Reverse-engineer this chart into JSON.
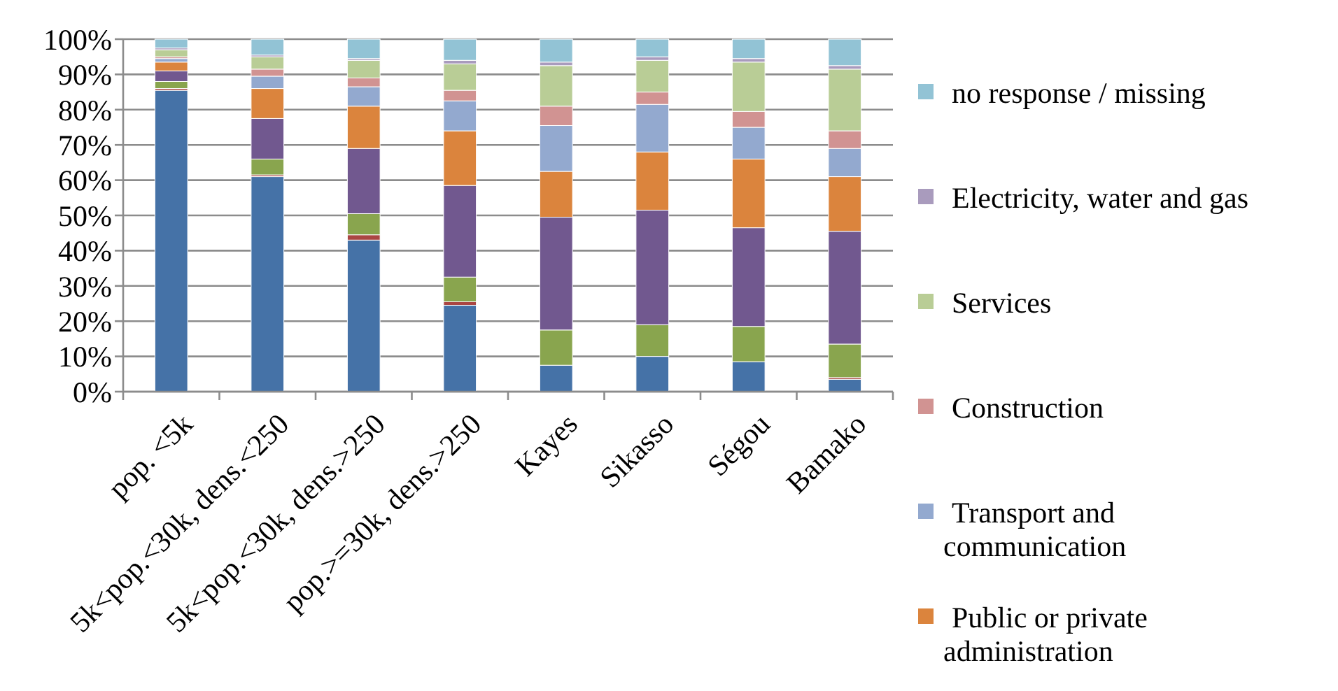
{
  "chart_data": {
    "type": "bar",
    "stacked": true,
    "categories": [
      "pop. <5k",
      "5k<pop.<30k, dens.<250",
      "5k<pop.<30k, dens.>250",
      "pop.>=30k, dens.>250",
      "Kayes",
      "Sikasso",
      "Ségou",
      "Bamako"
    ],
    "series": [
      {
        "color": "#4572a7",
        "values": [
          85.5,
          61,
          43,
          24.5,
          7.5,
          10,
          8.5,
          3.5
        ]
      },
      {
        "color": "#aa4643",
        "values": [
          0.5,
          0.5,
          1.5,
          1,
          0,
          0,
          0,
          0.5
        ]
      },
      {
        "color": "#89a54e",
        "values": [
          2,
          4.5,
          6,
          7,
          10,
          9,
          10,
          9.5
        ]
      },
      {
        "color": "#71588f",
        "values": [
          3,
          11.5,
          18.5,
          26,
          32,
          32.5,
          28,
          32
        ]
      },
      {
        "name": "Public or private administration",
        "color": "#db843d",
        "values": [
          2.5,
          8.5,
          12,
          15.5,
          13,
          16.5,
          19.5,
          15.5
        ]
      },
      {
        "name": "Transport and communication",
        "color": "#93a9cf",
        "values": [
          1,
          3.5,
          5.5,
          8.5,
          13,
          13.5,
          9,
          8
        ]
      },
      {
        "name": "Construction",
        "color": "#d19392",
        "values": [
          0.5,
          2,
          2.5,
          3,
          5.5,
          3.5,
          4.5,
          5
        ]
      },
      {
        "name": "Services",
        "color": "#b9cd96",
        "values": [
          2,
          3.5,
          5,
          7.5,
          11.5,
          9,
          14,
          17.5
        ]
      },
      {
        "name": "Electricity, water and gas",
        "color": "#a99bbd",
        "values": [
          0.5,
          0.5,
          0.5,
          1,
          1,
          1,
          1,
          1
        ]
      },
      {
        "name": "no response / missing",
        "color": "#92c3d5",
        "values": [
          2.5,
          4.5,
          5.5,
          6,
          6.5,
          5,
          5.5,
          7.5
        ]
      }
    ],
    "ylim": [
      0,
      100
    ],
    "yticks": [
      {
        "value": 0,
        "label": "0%"
      },
      {
        "value": 10,
        "label": "10%"
      },
      {
        "value": 20,
        "label": "20%"
      },
      {
        "value": 30,
        "label": "30%"
      },
      {
        "value": 40,
        "label": "40%"
      },
      {
        "value": 50,
        "label": "50%"
      },
      {
        "value": 60,
        "label": "60%"
      },
      {
        "value": 70,
        "label": "70%"
      },
      {
        "value": 80,
        "label": "80%"
      },
      {
        "value": 90,
        "label": "90%"
      },
      {
        "value": 100,
        "label": "100%"
      }
    ],
    "grid": "y",
    "legend": "right"
  }
}
